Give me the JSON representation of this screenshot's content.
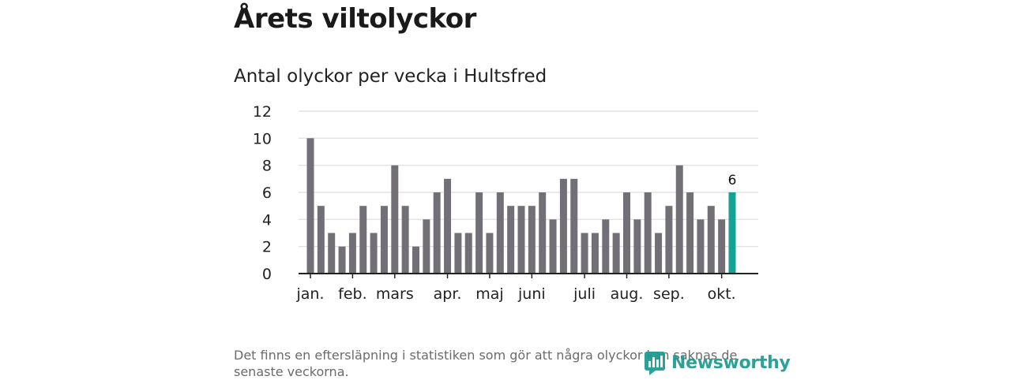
{
  "header": {
    "title": "Årets viltolyckor",
    "subtitle": "Antal olyckor per vecka i Hultsfred"
  },
  "footnote": "Det finns en eftersläpning i statistiken som gör att några olyckor kan saknas de senaste veckorna.",
  "brand": {
    "name": "Newsworthy",
    "icon": "newsworthy-logo-icon"
  },
  "colors": {
    "bar": "#727076",
    "highlight": "#13a394",
    "grid": "#dddddd",
    "axis": "#222222",
    "brand": "#1a9a8f"
  },
  "chart_data": {
    "type": "bar",
    "xlabel": "",
    "ylabel": "",
    "ylim": [
      0,
      12
    ],
    "yticks": [
      0,
      2,
      4,
      6,
      8,
      10,
      12
    ],
    "grid": true,
    "values": [
      10,
      5,
      3,
      2,
      3,
      5,
      3,
      5,
      8,
      5,
      2,
      4,
      6,
      7,
      3,
      3,
      6,
      3,
      6,
      5,
      5,
      5,
      6,
      4,
      7,
      7,
      3,
      3,
      4,
      3,
      6,
      4,
      6,
      3,
      5,
      8,
      6,
      4,
      5,
      4,
      6
    ],
    "highlight_index": 40,
    "highlight_label": "6",
    "month_labels": [
      {
        "label": "jan.",
        "week_index": 0
      },
      {
        "label": "feb.",
        "week_index": 4
      },
      {
        "label": "mars",
        "week_index": 8
      },
      {
        "label": "apr.",
        "week_index": 13
      },
      {
        "label": "maj",
        "week_index": 17
      },
      {
        "label": "juni",
        "week_index": 21
      },
      {
        "label": "juli",
        "week_index": 26
      },
      {
        "label": "aug.",
        "week_index": 30
      },
      {
        "label": "sep.",
        "week_index": 34
      },
      {
        "label": "okt.",
        "week_index": 39
      }
    ]
  }
}
